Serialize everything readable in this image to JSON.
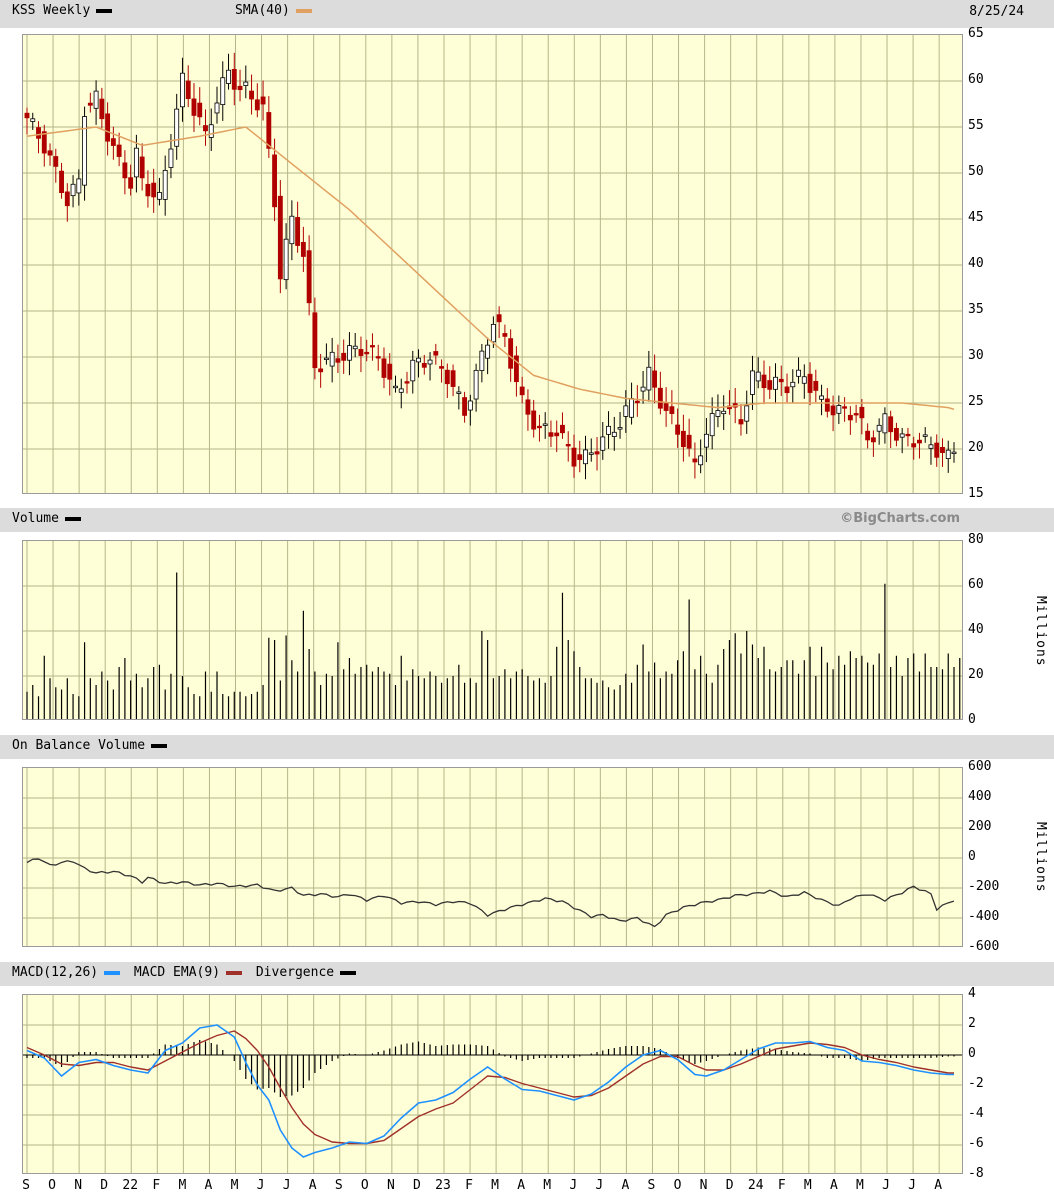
{
  "header": {
    "ticker_label": "KSS Weekly",
    "sma_label": "SMA(40)",
    "date": "8/25/24",
    "copyright": "©BigCharts.com"
  },
  "panels": {
    "volume": {
      "label": "Volume",
      "unit": "Millions"
    },
    "obv": {
      "label": "On Balance Volume",
      "unit": "Millions"
    },
    "macd": {
      "label": "MACD(12,26)",
      "ema_label": "MACD EMA(9)",
      "div_label": "Divergence"
    }
  },
  "colors": {
    "up": "#000000",
    "down": "#b00000",
    "sma": "#e0a060",
    "macd": "#1e90ff",
    "ema": "#a0302a",
    "grid": "#b6b68a",
    "panel": "#ffffd7"
  },
  "chart_data": [
    {
      "type": "candlestick",
      "title": "KSS Weekly",
      "series": [
        {
          "name": "SMA(40)"
        }
      ],
      "ylim": [
        15,
        65
      ],
      "yticks": [
        "65",
        "60",
        "55",
        "50",
        "45",
        "40",
        "35",
        "30",
        "25",
        "20",
        "15"
      ],
      "xticks": [
        "S",
        "O",
        "N",
        "D",
        "22",
        "F",
        "M",
        "A",
        "M",
        "J",
        "J",
        "A",
        "S",
        "O",
        "N",
        "D",
        "23",
        "F",
        "M",
        "A",
        "M",
        "J",
        "J",
        "A",
        "S",
        "O",
        "N",
        "D",
        "24",
        "F",
        "M",
        "A",
        "M",
        "J",
        "J",
        "A"
      ],
      "anchors": [
        [
          0,
          56
        ],
        [
          3,
          53
        ],
        [
          5,
          50
        ],
        [
          7,
          47
        ],
        [
          9,
          49
        ],
        [
          10,
          57
        ],
        [
          12,
          58
        ],
        [
          13,
          56
        ],
        [
          16,
          51
        ],
        [
          18,
          49
        ],
        [
          19,
          52
        ],
        [
          20,
          49
        ],
        [
          23,
          47
        ],
        [
          27,
          60
        ],
        [
          29,
          57
        ],
        [
          31,
          54
        ],
        [
          33,
          58
        ],
        [
          35,
          61
        ],
        [
          37,
          59
        ],
        [
          38,
          59
        ],
        [
          41,
          57
        ],
        [
          43,
          47
        ],
        [
          44,
          39
        ],
        [
          46,
          45
        ],
        [
          48,
          41
        ],
        [
          50,
          29
        ],
        [
          54,
          30
        ],
        [
          58,
          31
        ],
        [
          61,
          30
        ],
        [
          64,
          26
        ],
        [
          67,
          29
        ],
        [
          70,
          30
        ],
        [
          73,
          28
        ],
        [
          76,
          24
        ],
        [
          79,
          30
        ],
        [
          81,
          34
        ],
        [
          83,
          32
        ],
        [
          86,
          25
        ],
        [
          89,
          22
        ],
        [
          92,
          22
        ],
        [
          95,
          19
        ],
        [
          97,
          19
        ],
        [
          100,
          21
        ],
        [
          103,
          23
        ],
        [
          106,
          26
        ],
        [
          108,
          28
        ],
        [
          111,
          24
        ],
        [
          114,
          21
        ],
        [
          116,
          18
        ],
        [
          118,
          22
        ],
        [
          121,
          25
        ],
        [
          124,
          23
        ],
        [
          126,
          28
        ],
        [
          129,
          27
        ],
        [
          132,
          27
        ],
        [
          135,
          28
        ],
        [
          138,
          25
        ],
        [
          141,
          24
        ],
        [
          144,
          24
        ],
        [
          146,
          21
        ],
        [
          149,
          23
        ],
        [
          152,
          21
        ],
        [
          155,
          21
        ],
        [
          158,
          20
        ],
        [
          160,
          19
        ],
        [
          161,
          20
        ]
      ],
      "sma": [
        [
          0,
          54
        ],
        [
          12,
          55
        ],
        [
          20,
          53
        ],
        [
          30,
          54
        ],
        [
          38,
          55
        ],
        [
          44,
          52
        ],
        [
          56,
          46
        ],
        [
          68,
          39
        ],
        [
          80,
          32
        ],
        [
          88,
          28
        ],
        [
          96,
          26.5
        ],
        [
          104,
          25.5
        ],
        [
          112,
          25
        ],
        [
          120,
          24.5
        ],
        [
          128,
          25
        ],
        [
          136,
          25
        ],
        [
          144,
          25
        ],
        [
          152,
          25
        ],
        [
          160,
          24.5
        ]
      ]
    },
    {
      "type": "bar",
      "title": "Volume",
      "ylabel": "Millions",
      "ylim": [
        0,
        80
      ],
      "yticks": [
        "80",
        "60",
        "40",
        "20",
        "0"
      ],
      "values": [
        13,
        16,
        11,
        29,
        19,
        15,
        14,
        19,
        12,
        11,
        35,
        19,
        16,
        22,
        18,
        14,
        24,
        28,
        18,
        21,
        15,
        19,
        24,
        25,
        14,
        21,
        66,
        20,
        15,
        12,
        11,
        22,
        13,
        22,
        12,
        11,
        13,
        13,
        11,
        12,
        13,
        16,
        37,
        36,
        18,
        38,
        27,
        22,
        49,
        32,
        22,
        16,
        21,
        20,
        35,
        23,
        28,
        21,
        24,
        25,
        22,
        24,
        22,
        21,
        16,
        29,
        18,
        23,
        20,
        19,
        22,
        20,
        17,
        19,
        20,
        25,
        17,
        19,
        17,
        40,
        36,
        19,
        20,
        23,
        19,
        22,
        23,
        20,
        18,
        19,
        17,
        20,
        33,
        57,
        36,
        31,
        24,
        19,
        19,
        17,
        18,
        15,
        14,
        16,
        21,
        17,
        25,
        34,
        22,
        26,
        19,
        22,
        21,
        27,
        31,
        54,
        23,
        29,
        21,
        17,
        25,
        32,
        36,
        39,
        30,
        40,
        34,
        28,
        33,
        23,
        22,
        24,
        27,
        27,
        21,
        27,
        33,
        20,
        33,
        26,
        23,
        29,
        25,
        31,
        28,
        29,
        26,
        25,
        30,
        61,
        24,
        29,
        20,
        28,
        30,
        22,
        30,
        24,
        24,
        23,
        30,
        24,
        28,
        30,
        52,
        25
      ]
    },
    {
      "type": "line",
      "title": "On Balance Volume",
      "ylabel": "Millions",
      "ylim": [
        -600,
        600
      ],
      "yticks": [
        "600",
        "400",
        "200",
        "0",
        "-200",
        "-400",
        "-600"
      ],
      "anchors": [
        [
          0,
          -30
        ],
        [
          2,
          0
        ],
        [
          4,
          -50
        ],
        [
          6,
          -30
        ],
        [
          8,
          -20
        ],
        [
          10,
          -70
        ],
        [
          12,
          -100
        ],
        [
          15,
          -90
        ],
        [
          18,
          -120
        ],
        [
          20,
          -160
        ],
        [
          21,
          -130
        ],
        [
          24,
          -170
        ],
        [
          27,
          -160
        ],
        [
          30,
          -180
        ],
        [
          33,
          -170
        ],
        [
          36,
          -190
        ],
        [
          40,
          -180
        ],
        [
          43,
          -220
        ],
        [
          46,
          -200
        ],
        [
          48,
          -250
        ],
        [
          51,
          -240
        ],
        [
          54,
          -260
        ],
        [
          56,
          -240
        ],
        [
          59,
          -280
        ],
        [
          62,
          -250
        ],
        [
          65,
          -300
        ],
        [
          68,
          -290
        ],
        [
          71,
          -310
        ],
        [
          74,
          -290
        ],
        [
          77,
          -300
        ],
        [
          80,
          -380
        ],
        [
          84,
          -330
        ],
        [
          87,
          -300
        ],
        [
          90,
          -270
        ],
        [
          93,
          -290
        ],
        [
          96,
          -350
        ],
        [
          98,
          -390
        ],
        [
          100,
          -380
        ],
        [
          103,
          -420
        ],
        [
          106,
          -400
        ],
        [
          109,
          -460
        ],
        [
          111,
          -380
        ],
        [
          114,
          -330
        ],
        [
          117,
          -300
        ],
        [
          120,
          -280
        ],
        [
          123,
          -250
        ],
        [
          126,
          -240
        ],
        [
          129,
          -220
        ],
        [
          132,
          -260
        ],
        [
          135,
          -230
        ],
        [
          138,
          -280
        ],
        [
          141,
          -320
        ],
        [
          143,
          -270
        ],
        [
          146,
          -240
        ],
        [
          149,
          -280
        ],
        [
          152,
          -230
        ],
        [
          154,
          -190
        ],
        [
          157,
          -240
        ],
        [
          158,
          -340
        ],
        [
          160,
          -300
        ],
        [
          161,
          -280
        ]
      ]
    },
    {
      "type": "line",
      "title": "MACD(12,26)",
      "ylim": [
        -8,
        4
      ],
      "yticks": [
        "4",
        "2",
        "0",
        "-2",
        "-4",
        "-6",
        "-8"
      ],
      "series": [
        {
          "name": "MACD(12,26)",
          "anchors": [
            [
              0,
              0.3
            ],
            [
              3,
              -0.2
            ],
            [
              6,
              -1.4
            ],
            [
              9,
              -0.5
            ],
            [
              12,
              -0.3
            ],
            [
              15,
              -0.7
            ],
            [
              18,
              -1.0
            ],
            [
              21,
              -1.2
            ],
            [
              24,
              0.3
            ],
            [
              27,
              0.8
            ],
            [
              30,
              1.8
            ],
            [
              33,
              2.0
            ],
            [
              36,
              1.2
            ],
            [
              38,
              -0.5
            ],
            [
              40,
              -2.0
            ],
            [
              42,
              -3.0
            ],
            [
              44,
              -5.0
            ],
            [
              46,
              -6.2
            ],
            [
              48,
              -6.8
            ],
            [
              50,
              -6.5
            ],
            [
              53,
              -6.2
            ],
            [
              56,
              -5.8
            ],
            [
              59,
              -5.9
            ],
            [
              62,
              -5.4
            ],
            [
              65,
              -4.2
            ],
            [
              68,
              -3.2
            ],
            [
              71,
              -3.0
            ],
            [
              74,
              -2.5
            ],
            [
              77,
              -1.6
            ],
            [
              80,
              -0.8
            ],
            [
              83,
              -1.6
            ],
            [
              86,
              -2.3
            ],
            [
              89,
              -2.4
            ],
            [
              92,
              -2.7
            ],
            [
              95,
              -3.0
            ],
            [
              98,
              -2.6
            ],
            [
              101,
              -1.8
            ],
            [
              104,
              -0.8
            ],
            [
              107,
              0.0
            ],
            [
              110,
              0.3
            ],
            [
              113,
              -0.3
            ],
            [
              116,
              -1.3
            ],
            [
              118,
              -1.4
            ],
            [
              121,
              -1.0
            ],
            [
              124,
              -0.3
            ],
            [
              127,
              0.4
            ],
            [
              130,
              0.8
            ],
            [
              133,
              0.8
            ],
            [
              136,
              0.9
            ],
            [
              139,
              0.5
            ],
            [
              142,
              0.3
            ],
            [
              145,
              -0.4
            ],
            [
              148,
              -0.5
            ],
            [
              151,
              -0.7
            ],
            [
              154,
              -1.0
            ],
            [
              157,
              -1.2
            ],
            [
              160,
              -1.3
            ],
            [
              161,
              -1.3
            ]
          ]
        },
        {
          "name": "MACD EMA(9)",
          "anchors": [
            [
              0,
              0.5
            ],
            [
              3,
              0.0
            ],
            [
              6,
              -0.6
            ],
            [
              9,
              -0.7
            ],
            [
              12,
              -0.5
            ],
            [
              15,
              -0.5
            ],
            [
              18,
              -0.8
            ],
            [
              21,
              -1.0
            ],
            [
              24,
              -0.4
            ],
            [
              27,
              0.2
            ],
            [
              30,
              0.8
            ],
            [
              33,
              1.3
            ],
            [
              36,
              1.6
            ],
            [
              38,
              1.1
            ],
            [
              40,
              0.3
            ],
            [
              42,
              -0.8
            ],
            [
              44,
              -2.2
            ],
            [
              46,
              -3.5
            ],
            [
              48,
              -4.6
            ],
            [
              50,
              -5.3
            ],
            [
              53,
              -5.8
            ],
            [
              56,
              -5.9
            ],
            [
              59,
              -5.9
            ],
            [
              62,
              -5.7
            ],
            [
              65,
              -4.9
            ],
            [
              68,
              -4.1
            ],
            [
              71,
              -3.6
            ],
            [
              74,
              -3.2
            ],
            [
              77,
              -2.3
            ],
            [
              80,
              -1.4
            ],
            [
              83,
              -1.5
            ],
            [
              86,
              -1.9
            ],
            [
              89,
              -2.2
            ],
            [
              92,
              -2.5
            ],
            [
              95,
              -2.8
            ],
            [
              98,
              -2.7
            ],
            [
              101,
              -2.2
            ],
            [
              104,
              -1.4
            ],
            [
              107,
              -0.6
            ],
            [
              110,
              -0.1
            ],
            [
              113,
              -0.1
            ],
            [
              116,
              -0.7
            ],
            [
              118,
              -1.0
            ],
            [
              121,
              -1.0
            ],
            [
              124,
              -0.6
            ],
            [
              127,
              -0.1
            ],
            [
              130,
              0.4
            ],
            [
              133,
              0.6
            ],
            [
              136,
              0.8
            ],
            [
              139,
              0.7
            ],
            [
              142,
              0.5
            ],
            [
              145,
              0.0
            ],
            [
              148,
              -0.3
            ],
            [
              151,
              -0.5
            ],
            [
              154,
              -0.8
            ],
            [
              157,
              -1.0
            ],
            [
              160,
              -1.2
            ],
            [
              161,
              -1.2
            ]
          ]
        },
        {
          "name": "Divergence"
        }
      ]
    }
  ]
}
